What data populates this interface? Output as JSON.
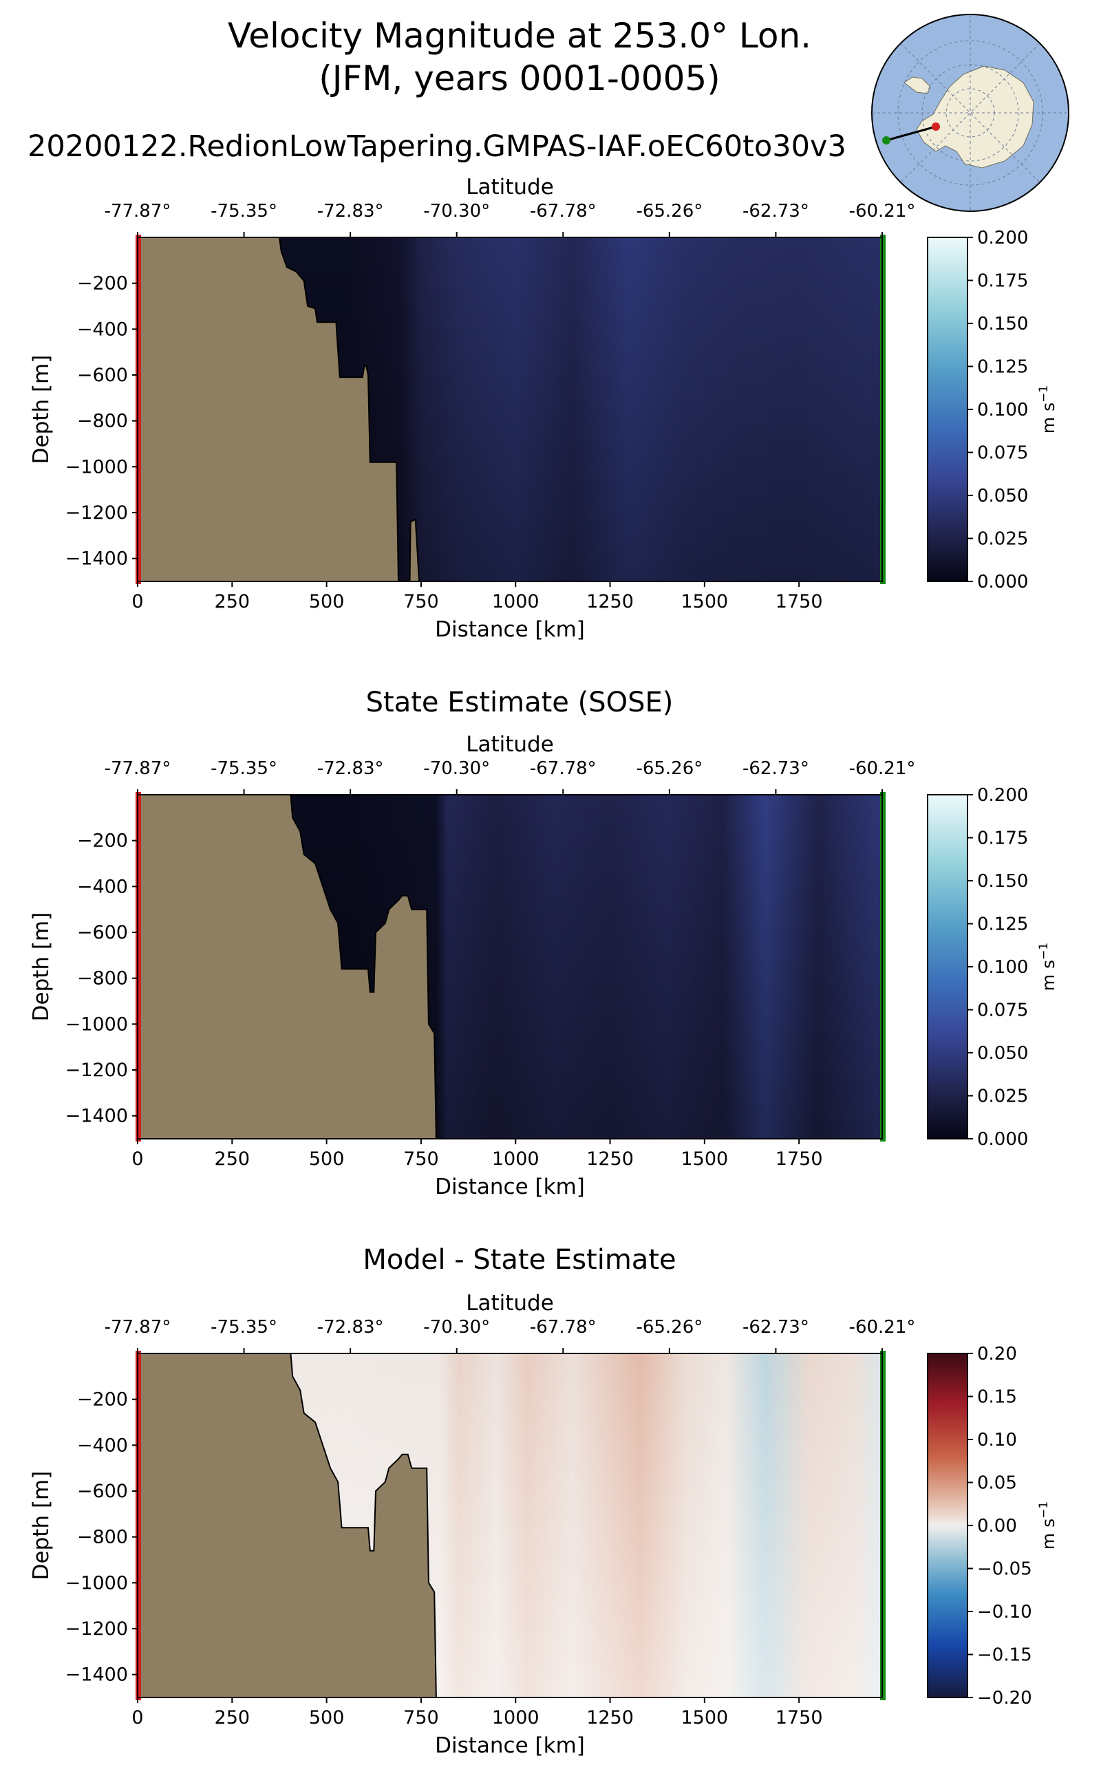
{
  "header": {
    "title_line1": "Velocity Magnitude at 253.0° Lon.",
    "title_line2": "(JFM, years 0001-0005)",
    "run_name": "20200122.RedionLowTapering.GMPAS-IAF.oEC60to30v3"
  },
  "colors": {
    "land": "#8e7e62",
    "start_marker": "#d62020",
    "end_marker": "#138a13",
    "inset_ocean": "#9bb8e0",
    "inset_land": "#f0ecd8"
  },
  "chart_data": [
    {
      "type": "heatmap",
      "title": "",
      "top_axis_label": "Latitude",
      "top_ticks": [
        "-77.87°",
        "-75.35°",
        "-72.83°",
        "-70.30°",
        "-67.78°",
        "-65.26°",
        "-62.73°",
        "-60.21°"
      ],
      "xlabel": "Distance [km]",
      "ylabel": "Depth [m]",
      "xlim": [
        0,
        1970
      ],
      "ylim": [
        -1500,
        0
      ],
      "x_ticks": [
        0,
        250,
        500,
        750,
        1000,
        1250,
        1500,
        1750
      ],
      "y_ticks": [
        -200,
        -400,
        -600,
        -800,
        -1000,
        -1200,
        -1400
      ],
      "colorbar": {
        "label": "m s",
        "label_sup": "−1",
        "min": 0.0,
        "max": 0.2,
        "ticks": [
          "0.200",
          "0.175",
          "0.150",
          "0.125",
          "0.100",
          "0.075",
          "0.050",
          "0.025",
          "0.000"
        ]
      },
      "columns": [
        {
          "x": 560,
          "v": 0.006
        },
        {
          "x": 700,
          "v": 0.012
        },
        {
          "x": 750,
          "v": 0.025
        },
        {
          "x": 850,
          "v": 0.034
        },
        {
          "x": 1000,
          "v": 0.04
        },
        {
          "x": 1150,
          "v": 0.03
        },
        {
          "x": 1300,
          "v": 0.046
        },
        {
          "x": 1450,
          "v": 0.038
        },
        {
          "x": 1600,
          "v": 0.035
        },
        {
          "x": 1750,
          "v": 0.034
        },
        {
          "x": 1960,
          "v": 0.038
        }
      ],
      "land_profile": [
        [
          0,
          0
        ],
        [
          375,
          0
        ],
        [
          380,
          -60
        ],
        [
          395,
          -130
        ],
        [
          420,
          -150
        ],
        [
          440,
          -190
        ],
        [
          450,
          -300
        ],
        [
          470,
          -310
        ],
        [
          475,
          -370
        ],
        [
          525,
          -370
        ],
        [
          535,
          -610
        ],
        [
          595,
          -610
        ],
        [
          600,
          -560
        ],
        [
          605,
          -560
        ],
        [
          610,
          -600
        ],
        [
          615,
          -980
        ],
        [
          685,
          -980
        ],
        [
          690,
          -1500
        ],
        [
          0,
          -1500
        ]
      ],
      "island": [
        [
          720,
          -1500
        ],
        [
          722,
          -1240
        ],
        [
          735,
          -1230
        ],
        [
          745,
          -1500
        ]
      ]
    },
    {
      "type": "heatmap",
      "title": "State Estimate (SOSE)",
      "top_axis_label": "Latitude",
      "top_ticks": [
        "-77.87°",
        "-75.35°",
        "-72.83°",
        "-70.30°",
        "-67.78°",
        "-65.26°",
        "-62.73°",
        "-60.21°"
      ],
      "xlabel": "Distance [km]",
      "ylabel": "Depth [m]",
      "xlim": [
        0,
        1970
      ],
      "ylim": [
        -1500,
        0
      ],
      "x_ticks": [
        0,
        250,
        500,
        750,
        1000,
        1250,
        1500,
        1750
      ],
      "y_ticks": [
        -200,
        -400,
        -600,
        -800,
        -1000,
        -1200,
        -1400
      ],
      "colorbar": {
        "label": "m s",
        "label_sup": "−1",
        "min": 0.0,
        "max": 0.2,
        "ticks": [
          "0.200",
          "0.175",
          "0.150",
          "0.125",
          "0.100",
          "0.075",
          "0.050",
          "0.025",
          "0.000"
        ]
      },
      "columns": [
        {
          "x": 560,
          "v": 0.004
        },
        {
          "x": 790,
          "v": 0.008
        },
        {
          "x": 820,
          "v": 0.03
        },
        {
          "x": 950,
          "v": 0.022
        },
        {
          "x": 1100,
          "v": 0.03
        },
        {
          "x": 1250,
          "v": 0.026
        },
        {
          "x": 1400,
          "v": 0.032
        },
        {
          "x": 1550,
          "v": 0.024
        },
        {
          "x": 1660,
          "v": 0.052
        },
        {
          "x": 1800,
          "v": 0.026
        },
        {
          "x": 1960,
          "v": 0.045
        }
      ],
      "land_profile": [
        [
          0,
          0
        ],
        [
          405,
          0
        ],
        [
          410,
          -100
        ],
        [
          430,
          -160
        ],
        [
          440,
          -260
        ],
        [
          470,
          -300
        ],
        [
          490,
          -400
        ],
        [
          510,
          -500
        ],
        [
          530,
          -560
        ],
        [
          540,
          -760
        ],
        [
          610,
          -760
        ],
        [
          615,
          -860
        ],
        [
          625,
          -860
        ],
        [
          630,
          -600
        ],
        [
          655,
          -560
        ],
        [
          665,
          -500
        ],
        [
          690,
          -460
        ],
        [
          700,
          -440
        ],
        [
          715,
          -440
        ],
        [
          725,
          -500
        ],
        [
          765,
          -500
        ],
        [
          770,
          -1000
        ],
        [
          785,
          -1040
        ],
        [
          790,
          -1500
        ],
        [
          0,
          -1500
        ]
      ]
    },
    {
      "type": "heatmap",
      "title": "Model - State Estimate",
      "top_axis_label": "Latitude",
      "top_ticks": [
        "-77.87°",
        "-75.35°",
        "-72.83°",
        "-70.30°",
        "-67.78°",
        "-65.26°",
        "-62.73°",
        "-60.21°"
      ],
      "xlabel": "Distance [km]",
      "ylabel": "Depth [m]",
      "xlim": [
        0,
        1970
      ],
      "ylim": [
        -1500,
        0
      ],
      "x_ticks": [
        0,
        250,
        500,
        750,
        1000,
        1250,
        1500,
        1750
      ],
      "y_ticks": [
        -200,
        -400,
        -600,
        -800,
        -1000,
        -1200,
        -1400
      ],
      "colorbar": {
        "label": "m s",
        "label_sup": "−1",
        "min": -0.2,
        "max": 0.2,
        "ticks": [
          "0.20",
          "0.15",
          "0.10",
          "0.05",
          "0.00",
          "−0.05",
          "−0.10",
          "−0.15",
          "−0.20"
        ]
      },
      "columns": [
        {
          "x": 560,
          "v": 0.003
        },
        {
          "x": 800,
          "v": 0.004
        },
        {
          "x": 850,
          "v": 0.015
        },
        {
          "x": 950,
          "v": 0.006
        },
        {
          "x": 1030,
          "v": 0.018
        },
        {
          "x": 1150,
          "v": 0.008
        },
        {
          "x": 1330,
          "v": 0.028
        },
        {
          "x": 1450,
          "v": 0.01
        },
        {
          "x": 1560,
          "v": 0.004
        },
        {
          "x": 1660,
          "v": -0.02
        },
        {
          "x": 1780,
          "v": 0.012
        },
        {
          "x": 1900,
          "v": 0.008
        },
        {
          "x": 1960,
          "v": -0.008
        }
      ],
      "land_profile": [
        [
          0,
          0
        ],
        [
          405,
          0
        ],
        [
          410,
          -100
        ],
        [
          430,
          -160
        ],
        [
          440,
          -260
        ],
        [
          470,
          -300
        ],
        [
          490,
          -400
        ],
        [
          510,
          -500
        ],
        [
          530,
          -560
        ],
        [
          540,
          -760
        ],
        [
          610,
          -760
        ],
        [
          615,
          -860
        ],
        [
          625,
          -860
        ],
        [
          630,
          -600
        ],
        [
          655,
          -560
        ],
        [
          665,
          -500
        ],
        [
          690,
          -460
        ],
        [
          700,
          -440
        ],
        [
          715,
          -440
        ],
        [
          725,
          -500
        ],
        [
          765,
          -500
        ],
        [
          770,
          -1000
        ],
        [
          785,
          -1040
        ],
        [
          790,
          -1500
        ],
        [
          0,
          -1500
        ]
      ]
    }
  ]
}
